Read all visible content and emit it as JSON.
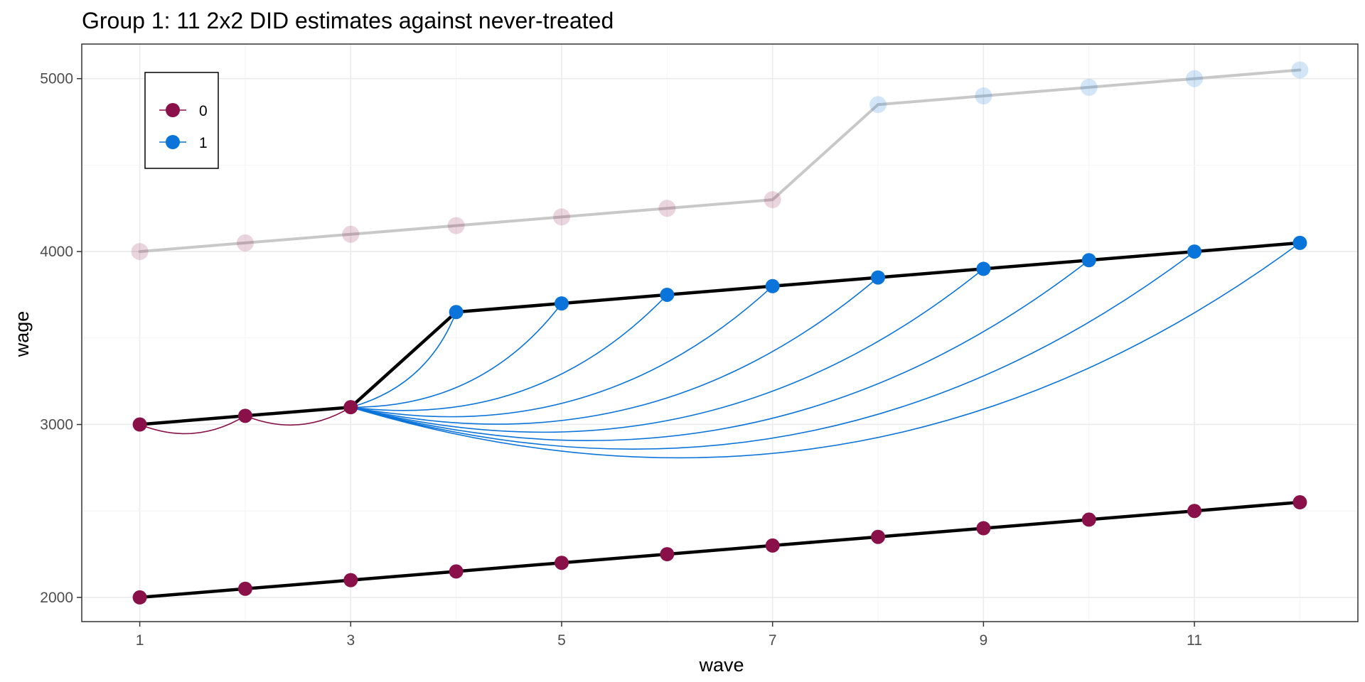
{
  "chart_data": {
    "type": "line",
    "title": "Group 1: 11 2x2 DID estimates against never-treated",
    "xlabel": "wave",
    "ylabel": "wage",
    "xlim": [
      0.45,
      12.55
    ],
    "ylim": [
      1860,
      5200
    ],
    "x_ticks": [
      1,
      3,
      5,
      7,
      9,
      11
    ],
    "y_ticks": [
      2000,
      3000,
      4000,
      5000
    ],
    "grid": true,
    "legend": {
      "position": "top-left",
      "entries": [
        "0",
        "1"
      ]
    },
    "colors": {
      "group0": "#8a1049",
      "group1": "#0a74da",
      "faded_line": "#c8c8c8",
      "line": "#000000"
    },
    "series": [
      {
        "role": "faded-background",
        "x": [
          1,
          2,
          3,
          4,
          5,
          6,
          7,
          8,
          9,
          10,
          11,
          12
        ],
        "y": [
          4000,
          4050,
          4100,
          4150,
          4200,
          4250,
          4300,
          4850,
          4900,
          4950,
          5000,
          5050
        ],
        "point_group": [
          "0",
          "0",
          "0",
          "0",
          "0",
          "0",
          "0",
          "1",
          "1",
          "1",
          "1",
          "1"
        ]
      },
      {
        "role": "treated-group",
        "x": [
          1,
          2,
          3,
          4,
          5,
          6,
          7,
          8,
          9,
          10,
          11,
          12
        ],
        "y": [
          3000,
          3050,
          3100,
          3650,
          3700,
          3750,
          3800,
          3850,
          3900,
          3950,
          4000,
          4050
        ],
        "point_group": [
          "0",
          "0",
          "0",
          "1",
          "1",
          "1",
          "1",
          "1",
          "1",
          "1",
          "1",
          "1"
        ]
      },
      {
        "role": "never-treated",
        "x": [
          1,
          2,
          3,
          4,
          5,
          6,
          7,
          8,
          9,
          10,
          11,
          12
        ],
        "y": [
          2000,
          2050,
          2100,
          2150,
          2200,
          2250,
          2300,
          2350,
          2400,
          2450,
          2500,
          2550
        ],
        "point_group": [
          "0",
          "0",
          "0",
          "0",
          "0",
          "0",
          "0",
          "0",
          "0",
          "0",
          "0",
          "0"
        ]
      }
    ],
    "curves": [
      {
        "from": [
          1,
          3000
        ],
        "to": [
          2,
          3050
        ],
        "group": "0"
      },
      {
        "from": [
          2,
          3050
        ],
        "to": [
          3,
          3100
        ],
        "group": "0"
      },
      {
        "from": [
          3,
          3100
        ],
        "to": [
          4,
          3650
        ],
        "group": "1"
      },
      {
        "from": [
          3,
          3100
        ],
        "to": [
          5,
          3700
        ],
        "group": "1"
      },
      {
        "from": [
          3,
          3100
        ],
        "to": [
          6,
          3750
        ],
        "group": "1"
      },
      {
        "from": [
          3,
          3100
        ],
        "to": [
          7,
          3800
        ],
        "group": "1"
      },
      {
        "from": [
          3,
          3100
        ],
        "to": [
          8,
          3850
        ],
        "group": "1"
      },
      {
        "from": [
          3,
          3100
        ],
        "to": [
          9,
          3900
        ],
        "group": "1"
      },
      {
        "from": [
          3,
          3100
        ],
        "to": [
          10,
          3950
        ],
        "group": "1"
      },
      {
        "from": [
          3,
          3100
        ],
        "to": [
          11,
          4000
        ],
        "group": "1"
      },
      {
        "from": [
          3,
          3100
        ],
        "to": [
          12,
          4050
        ],
        "group": "1"
      }
    ]
  }
}
